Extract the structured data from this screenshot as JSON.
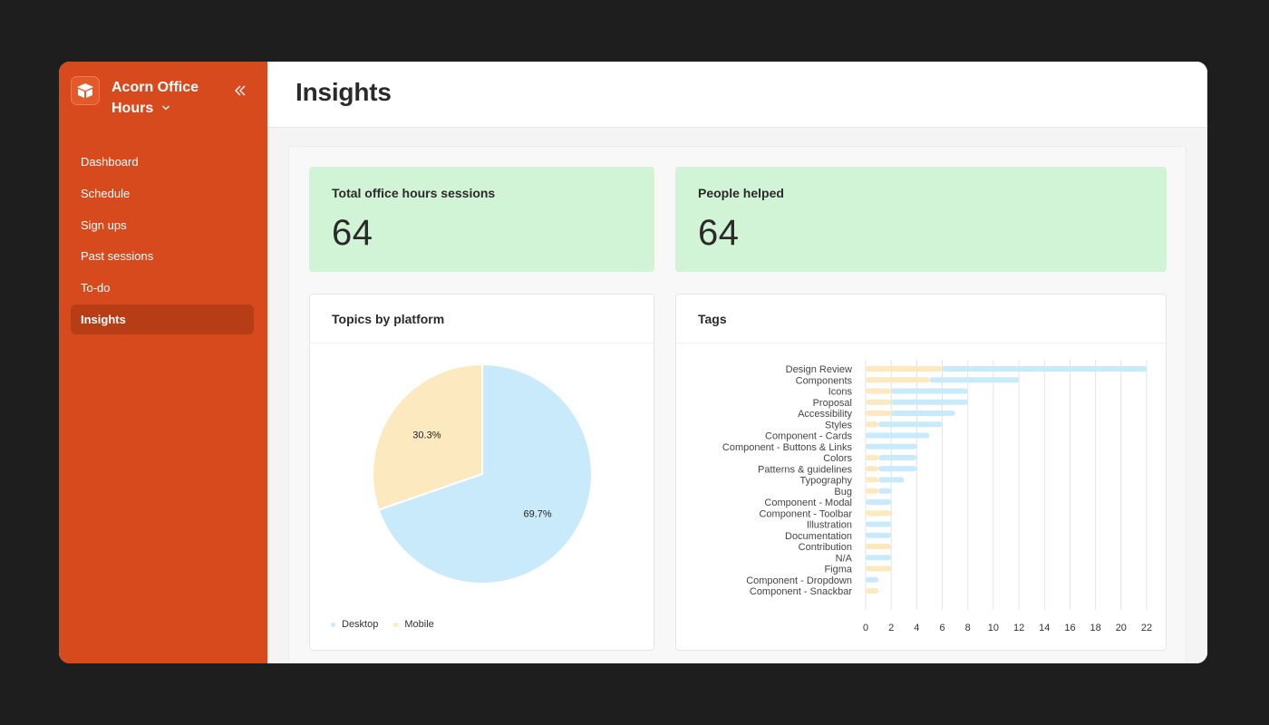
{
  "app": {
    "name": "Acorn Office Hours"
  },
  "colors": {
    "sidebar": "#d64a1e",
    "desktop": "#c8eafb",
    "mobile": "#fde9c0",
    "stat_bg": "#d2f4d6"
  },
  "sidebar": {
    "items": [
      {
        "label": "Dashboard",
        "active": false
      },
      {
        "label": "Schedule",
        "active": false
      },
      {
        "label": "Sign ups",
        "active": false
      },
      {
        "label": "Past sessions",
        "active": false
      },
      {
        "label": "To-do",
        "active": false
      },
      {
        "label": "Insights",
        "active": true
      }
    ]
  },
  "header": {
    "title": "Insights"
  },
  "stats": [
    {
      "label": "Total office hours sessions",
      "value": "64"
    },
    {
      "label": "People helped",
      "value": "64"
    }
  ],
  "charts": {
    "platform": {
      "title": "Topics by platform"
    },
    "tags": {
      "title": "Tags"
    }
  },
  "chart_data": [
    {
      "type": "pie",
      "title": "Topics by platform",
      "labels": [
        "Desktop",
        "Mobile"
      ],
      "values": [
        69.7,
        30.3
      ],
      "value_labels": [
        "69.7%",
        "30.3%"
      ],
      "legend": "bottom-left"
    },
    {
      "type": "bar",
      "orientation": "horizontal",
      "stacked": true,
      "title": "Tags",
      "categories": [
        "Design Review",
        "Components",
        "Icons",
        "Proposal",
        "Accessibility",
        "Styles",
        "Component - Cards",
        "Component - Buttons & Links",
        "Colors",
        "Patterns & guidelines",
        "Typography",
        "Bug",
        "Component - Modal",
        "Component - Toolbar",
        "Illustration",
        "Documentation",
        "Contribution",
        "N/A",
        "Figma",
        "Component - Dropdown",
        "Component - Snackbar"
      ],
      "series": [
        {
          "name": "Mobile",
          "values": [
            6,
            5,
            2,
            2,
            2,
            1,
            0,
            0,
            1,
            1,
            1,
            1,
            0,
            2,
            0,
            0,
            2,
            0,
            2,
            0,
            1
          ]
        },
        {
          "name": "Desktop",
          "values": [
            16,
            7,
            6,
            6,
            5,
            5,
            5,
            4,
            3,
            3,
            2,
            1,
            2,
            0,
            2,
            2,
            0,
            2,
            0,
            1,
            0
          ]
        }
      ],
      "xlim": [
        0,
        22
      ],
      "xticks": [
        "0",
        "2",
        "4",
        "6",
        "8",
        "10",
        "12",
        "14",
        "16",
        "18",
        "20",
        "22"
      ],
      "grid": true
    }
  ]
}
